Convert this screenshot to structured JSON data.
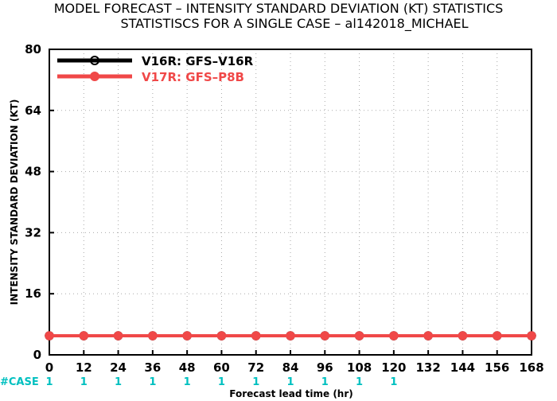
{
  "title_line1": "MODEL FORECAST – INTENSITY STANDARD DEVIATION (KT) STATISTICS",
  "title_line2": "STATISTISCS FOR A SINGLE CASE – al142018_MICHAEL",
  "case_label": "#CASE",
  "colors": {
    "series_black": "#000000",
    "series_red": "#f04848",
    "case_text": "#00c0c0",
    "grid": "#aaaaaa"
  },
  "chart_data": {
    "type": "line",
    "title": "MODEL FORECAST – INTENSITY STANDARD DEVIATION (KT) STATISTICS",
    "subtitle": "STATISTISCS FOR A SINGLE CASE – al142018_MICHAEL",
    "xlabel": "Forecast lead time (hr)",
    "ylabel": "INTENSITY STANDARD DEVIATION (KT)",
    "x": [
      0,
      12,
      24,
      36,
      48,
      60,
      72,
      84,
      96,
      108,
      120,
      132,
      144,
      156,
      168
    ],
    "xlim": [
      0,
      168
    ],
    "ylim": [
      0,
      80
    ],
    "yticks": [
      0,
      16,
      32,
      48,
      64,
      80
    ],
    "grid": true,
    "legend_position": "top-left",
    "series": [
      {
        "name": "V16R: GFS–V16R",
        "color": "#000000",
        "values": [
          5,
          5,
          5,
          5,
          5,
          5,
          5,
          5,
          5,
          5,
          5,
          5,
          5,
          5,
          5
        ]
      },
      {
        "name": "V17R: GFS–P8B",
        "color": "#f04848",
        "values": [
          5,
          5,
          5,
          5,
          5,
          5,
          5,
          5,
          5,
          5,
          5,
          5,
          5,
          5,
          5
        ]
      }
    ],
    "case_counts": [
      "1",
      "1",
      "1",
      "1",
      "1",
      "1",
      "1",
      "1",
      "1",
      "1",
      "1"
    ]
  }
}
